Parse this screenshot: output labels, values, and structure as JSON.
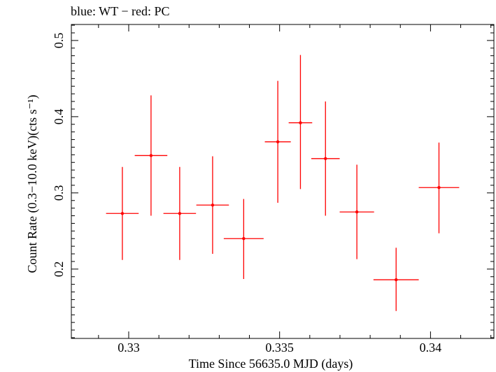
{
  "header": {
    "label": "blue: WT − red: PC"
  },
  "chart_data": {
    "type": "scatter",
    "xlabel": "Time Since 56635.0 MJD (days)",
    "ylabel": "Count Rate (0.3−10.0 keV)(cts s⁻¹)",
    "xlim": [
      0.3281,
      0.3421
    ],
    "ylim": [
      0.109,
      0.521
    ],
    "xticks": [
      {
        "value": 0.33,
        "label": "0.33"
      },
      {
        "value": 0.335,
        "label": "0.335"
      },
      {
        "value": 0.34,
        "label": "0.34"
      }
    ],
    "yticks": [
      {
        "value": 0.2,
        "label": "0.2"
      },
      {
        "value": 0.3,
        "label": "0.3"
      },
      {
        "value": 0.4,
        "label": "0.4"
      },
      {
        "value": 0.5,
        "label": "0.5"
      }
    ],
    "series": [
      {
        "color": "#ff0000",
        "points": [
          {
            "x": 0.32979,
            "xlo": 0.32925,
            "xhi": 0.33033,
            "y": 0.273,
            "ylo": 0.212,
            "yhi": 0.334
          },
          {
            "x": 0.33074,
            "xlo": 0.3302,
            "xhi": 0.33128,
            "y": 0.349,
            "ylo": 0.27,
            "yhi": 0.428
          },
          {
            "x": 0.33169,
            "xlo": 0.33115,
            "xhi": 0.33223,
            "y": 0.273,
            "ylo": 0.212,
            "yhi": 0.334
          },
          {
            "x": 0.33278,
            "xlo": 0.33224,
            "xhi": 0.33332,
            "y": 0.284,
            "ylo": 0.22,
            "yhi": 0.348
          },
          {
            "x": 0.33381,
            "xlo": 0.33315,
            "xhi": 0.33447,
            "y": 0.24,
            "ylo": 0.187,
            "yhi": 0.292
          },
          {
            "x": 0.33494,
            "xlo": 0.33451,
            "xhi": 0.33537,
            "y": 0.367,
            "ylo": 0.287,
            "yhi": 0.447
          },
          {
            "x": 0.33569,
            "xlo": 0.3353,
            "xhi": 0.33608,
            "y": 0.392,
            "ylo": 0.305,
            "yhi": 0.481
          },
          {
            "x": 0.33652,
            "xlo": 0.33605,
            "xhi": 0.33699,
            "y": 0.345,
            "ylo": 0.27,
            "yhi": 0.42
          },
          {
            "x": 0.33756,
            "xlo": 0.33699,
            "xhi": 0.33813,
            "y": 0.275,
            "ylo": 0.213,
            "yhi": 0.337
          },
          {
            "x": 0.33886,
            "xlo": 0.33811,
            "xhi": 0.33961,
            "y": 0.186,
            "ylo": 0.145,
            "yhi": 0.228
          },
          {
            "x": 0.34028,
            "xlo": 0.33961,
            "xhi": 0.34095,
            "y": 0.307,
            "ylo": 0.247,
            "yhi": 0.366
          }
        ]
      }
    ]
  }
}
